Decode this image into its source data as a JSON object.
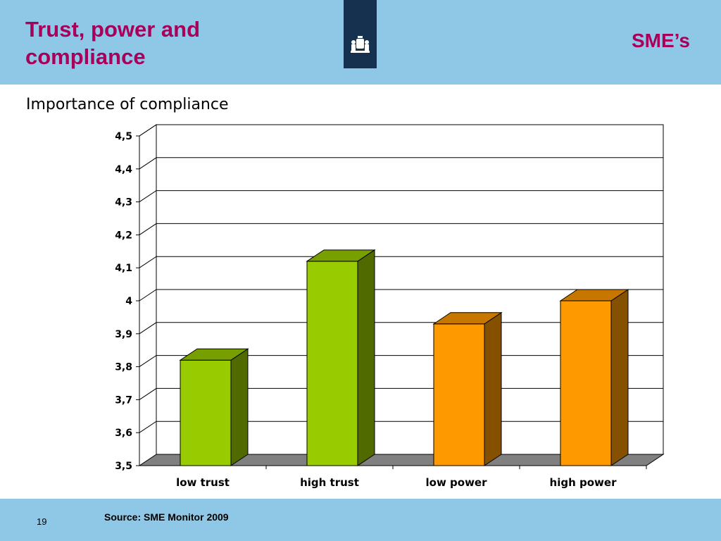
{
  "slide": {
    "title_line1": "Trust, power and",
    "title_line2": "compliance",
    "section": "SME’s",
    "logo_icon": "crest-icon",
    "page_number": "19",
    "source": "Source: SME Monitor 2009",
    "colors": {
      "band": "#8fc8e6",
      "title": "#a8005a",
      "logo_bg": "#16304f"
    }
  },
  "chart_data": {
    "type": "bar",
    "title": "Importance of compliance",
    "categories": [
      "low trust",
      "high trust",
      "low power",
      "high power"
    ],
    "values": [
      3.82,
      4.12,
      3.93,
      4.0
    ],
    "colors": [
      "#99cc00",
      "#99cc00",
      "#ff9900",
      "#ff9900"
    ],
    "ylim": [
      3.5,
      4.5
    ],
    "yticks": [
      "3,5",
      "3,6",
      "3,7",
      "3,8",
      "3,9",
      "4",
      "4,1",
      "4,2",
      "4,3",
      "4,4",
      "4,5"
    ],
    "grid": true,
    "legend": "none",
    "style": "3d"
  }
}
